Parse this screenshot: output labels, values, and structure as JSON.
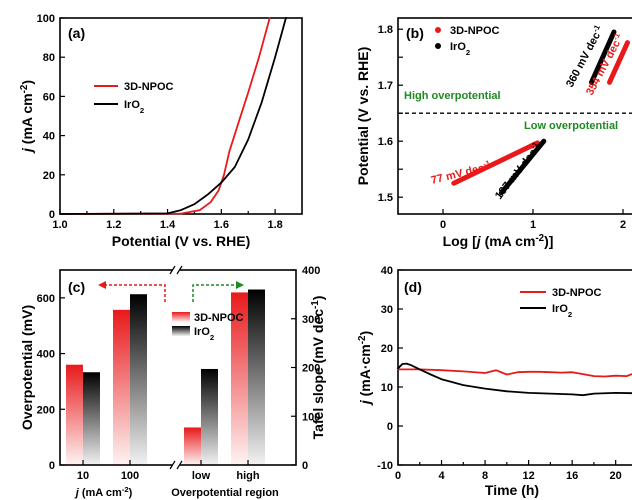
{
  "chart_data": [
    {
      "id": "a",
      "type": "line",
      "panel_label": "(a)",
      "xlabel": "Potential (V vs. RHE)",
      "ylabel": "j (mA cm−2)",
      "xlim": [
        1.0,
        1.9
      ],
      "ylim": [
        0,
        100
      ],
      "xticks": [
        "1.0",
        "1.2",
        "1.4",
        "1.6",
        "1.8"
      ],
      "yticks": [
        "0",
        "20",
        "40",
        "60",
        "80",
        "100"
      ],
      "legend_position": "middle-left",
      "series": [
        {
          "name": "3D-NPOC",
          "color": "#e8191b",
          "x": [
            1.0,
            1.45,
            1.52,
            1.56,
            1.59,
            1.61,
            1.63,
            1.66,
            1.7,
            1.74,
            1.78
          ],
          "y": [
            0,
            0.2,
            2,
            6,
            12,
            20,
            32,
            45,
            62,
            80,
            100
          ]
        },
        {
          "name": "IrO2",
          "color": "#000000",
          "x": [
            1.0,
            1.4,
            1.45,
            1.5,
            1.55,
            1.6,
            1.65,
            1.7,
            1.75,
            1.8,
            1.84
          ],
          "y": [
            0,
            0.3,
            2,
            5,
            10,
            16,
            24,
            38,
            57,
            80,
            100
          ]
        }
      ]
    },
    {
      "id": "b",
      "type": "line",
      "panel_label": "(b)",
      "xlabel": "Log [j (mA cm−2)]",
      "ylabel": "Potential (V vs. RHE)",
      "xlim": [
        -0.5,
        2.1
      ],
      "ylim": [
        1.47,
        1.82
      ],
      "xticks": [
        "0",
        "1",
        "2"
      ],
      "yticks": [
        "1.5",
        "1.6",
        "1.7",
        "1.8"
      ],
      "reference_line_y": 1.65,
      "region_labels": [
        "High overpotential",
        "Low overpotential"
      ],
      "legend_position": "top-left",
      "annotations": [
        {
          "text": "77 mV dec-1",
          "color": "#e8191b"
        },
        {
          "text": "197 mV dec-1",
          "color": "#000000"
        },
        {
          "text": "360 mV dec-1",
          "color": "#000000"
        },
        {
          "text": "354 mV dec-1",
          "color": "#e8191b"
        }
      ],
      "series": [
        {
          "name": "3D-NPOC",
          "color": "#e8191b",
          "segments": [
            {
              "x": [
                0.12,
                1.05
              ],
              "y": [
                1.525,
                1.597
              ]
            },
            {
              "x": [
                1.85,
                2.05
              ],
              "y": [
                1.705,
                1.776
              ]
            }
          ]
        },
        {
          "name": "IrO2",
          "color": "#000000",
          "segments": [
            {
              "x": [
                0.65,
                1.12
              ],
              "y": [
                1.508,
                1.6
              ]
            },
            {
              "x": [
                1.65,
                1.9
              ],
              "y": [
                1.705,
                1.795
              ]
            }
          ]
        }
      ]
    },
    {
      "id": "c",
      "type": "bar",
      "panel_label": "(c)",
      "ylabel_left": "Overpotential (mV)",
      "ylabel_right": "Tafel slope (mV dec−1)",
      "xlabel_left": "j (mA cm−2)",
      "xlabel_right": "Overpotential region",
      "categories": [
        "10",
        "100",
        "low",
        "high"
      ],
      "ylim_left": [
        0,
        700
      ],
      "ylim_right": [
        0,
        400
      ],
      "yticks_left": [
        "0",
        "200",
        "400",
        "600"
      ],
      "yticks_right": [
        "0",
        "100",
        "200",
        "300",
        "400"
      ],
      "legend_position": "center",
      "series": [
        {
          "name": "3D-NPOC",
          "color": "#e8191b",
          "values": [
            360,
            557,
            77,
            354
          ]
        },
        {
          "name": "IrO2",
          "color": "#000000",
          "values": [
            333,
            613,
            197,
            360
          ]
        }
      ]
    },
    {
      "id": "d",
      "type": "line",
      "panel_label": "(d)",
      "xlabel": "Time (h)",
      "ylabel": "j (mA·cm−2)",
      "xlim": [
        0,
        21.5
      ],
      "ylim": [
        -10,
        40
      ],
      "xticks": [
        "0",
        "4",
        "8",
        "12",
        "16",
        "20"
      ],
      "yticks": [
        "-10",
        "0",
        "10",
        "20",
        "30",
        "40"
      ],
      "legend_position": "top-right",
      "series": [
        {
          "name": "3D-NPOC",
          "color": "#e8191b",
          "x": [
            0,
            2,
            4,
            6,
            8,
            9,
            10,
            11,
            12,
            13,
            14,
            15,
            16,
            17,
            18,
            19,
            20,
            21,
            21.5
          ],
          "y": [
            14.5,
            14.5,
            14.3,
            14.0,
            13.6,
            14.3,
            13.2,
            13.8,
            13.9,
            13.9,
            13.8,
            13.7,
            13.8,
            13.3,
            12.8,
            12.7,
            12.9,
            12.8,
            13.3
          ]
        },
        {
          "name": "IrO2",
          "color": "#000000",
          "x": [
            0,
            0.4,
            0.8,
            1.2,
            2,
            3,
            4,
            6,
            8,
            10,
            12,
            14,
            16,
            17,
            18,
            20,
            21.5
          ],
          "y": [
            14.8,
            15.9,
            16.0,
            15.6,
            14.5,
            13.2,
            12.0,
            10.5,
            9.6,
            8.9,
            8.5,
            8.3,
            8.1,
            7.9,
            8.3,
            8.5,
            8.4
          ]
        }
      ]
    }
  ]
}
